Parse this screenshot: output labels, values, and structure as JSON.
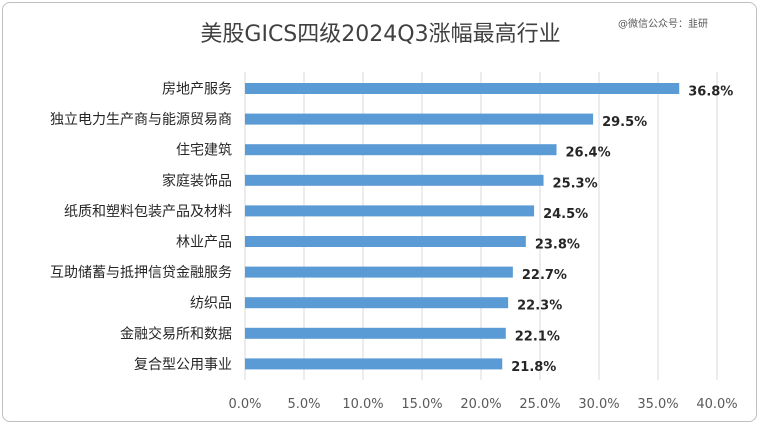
{
  "chart_data": {
    "type": "bar",
    "orientation": "horizontal",
    "title": "美股GICS四级2024Q3涨幅最高行业",
    "watermark": "@微信公众号：韭研",
    "categories": [
      "房地产服务",
      "独立电力生产商与能源贸易商",
      "住宅建筑",
      "家庭装饰品",
      "纸质和塑料包装产品及材料",
      "林业产品",
      "互助储蓄与抵押信贷金融服务",
      "纺织品",
      "金融交易所和数据",
      "复合型公用事业"
    ],
    "values": [
      36.8,
      29.5,
      26.4,
      25.3,
      24.5,
      23.8,
      22.7,
      22.3,
      22.1,
      21.8
    ],
    "value_labels": [
      "36.8%",
      "29.5%",
      "26.4%",
      "25.3%",
      "24.5%",
      "23.8%",
      "22.7%",
      "22.3%",
      "22.1%",
      "21.8%"
    ],
    "xlim": [
      0,
      40
    ],
    "x_ticks": [
      "0.0%",
      "5.0%",
      "10.0%",
      "15.0%",
      "20.0%",
      "25.0%",
      "30.0%",
      "35.0%",
      "40.0%"
    ],
    "x_tick_values": [
      0,
      5,
      10,
      15,
      20,
      25,
      30,
      35,
      40
    ],
    "grid": true,
    "bar_color": "#5b9bd5",
    "grid_color": "#d9d9d9"
  }
}
